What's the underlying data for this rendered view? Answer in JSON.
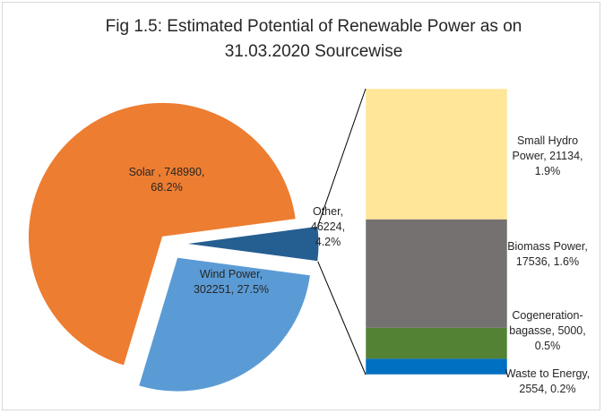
{
  "chart_data": {
    "type": "pie",
    "subtype": "bar-of-pie",
    "title_line1": "Fig 1.5: Estimated Potential of Renewable Power as on",
    "title_line2": "31.03.2020 Sourcewise",
    "pie": [
      {
        "name": "Solar",
        "value": 748990,
        "percent": "68.2%",
        "color": "#ED7D31",
        "label_lines": [
          "Solar , 748990,",
          "68.2%"
        ]
      },
      {
        "name": "Wind Power",
        "value": 302251,
        "percent": "27.5%",
        "color": "#5B9BD5",
        "label_lines": [
          "Wind Power,",
          "302251, 27.5%"
        ]
      },
      {
        "name": "Other",
        "value": 46224,
        "percent": "4.2%",
        "color": "#255E91",
        "label_lines": [
          "Other,",
          "46224,",
          "4.2%"
        ]
      }
    ],
    "bar": [
      {
        "name": "Small Hydro Power",
        "value": 21134,
        "percent": "1.9%",
        "color": "#FFE699",
        "label_lines": [
          "Small Hydro",
          "Power, 21134,",
          "1.9%"
        ]
      },
      {
        "name": "Biomass Power",
        "value": 17536,
        "percent": "1.6%",
        "color": "#767171",
        "label_lines": [
          "Biomass Power,",
          "17536, 1.6%"
        ]
      },
      {
        "name": "Cogeneration-bagasse",
        "value": 5000,
        "percent": "0.5%",
        "color": "#548235",
        "label_lines": [
          "Cogeneration-",
          "bagasse, 5000,",
          "0.5%"
        ]
      },
      {
        "name": "Waste to Energy",
        "value": 2554,
        "percent": "0.2%",
        "color": "#0070C0",
        "label_lines": [
          "Waste to Energy,",
          "2554, 0.2%"
        ]
      }
    ]
  }
}
